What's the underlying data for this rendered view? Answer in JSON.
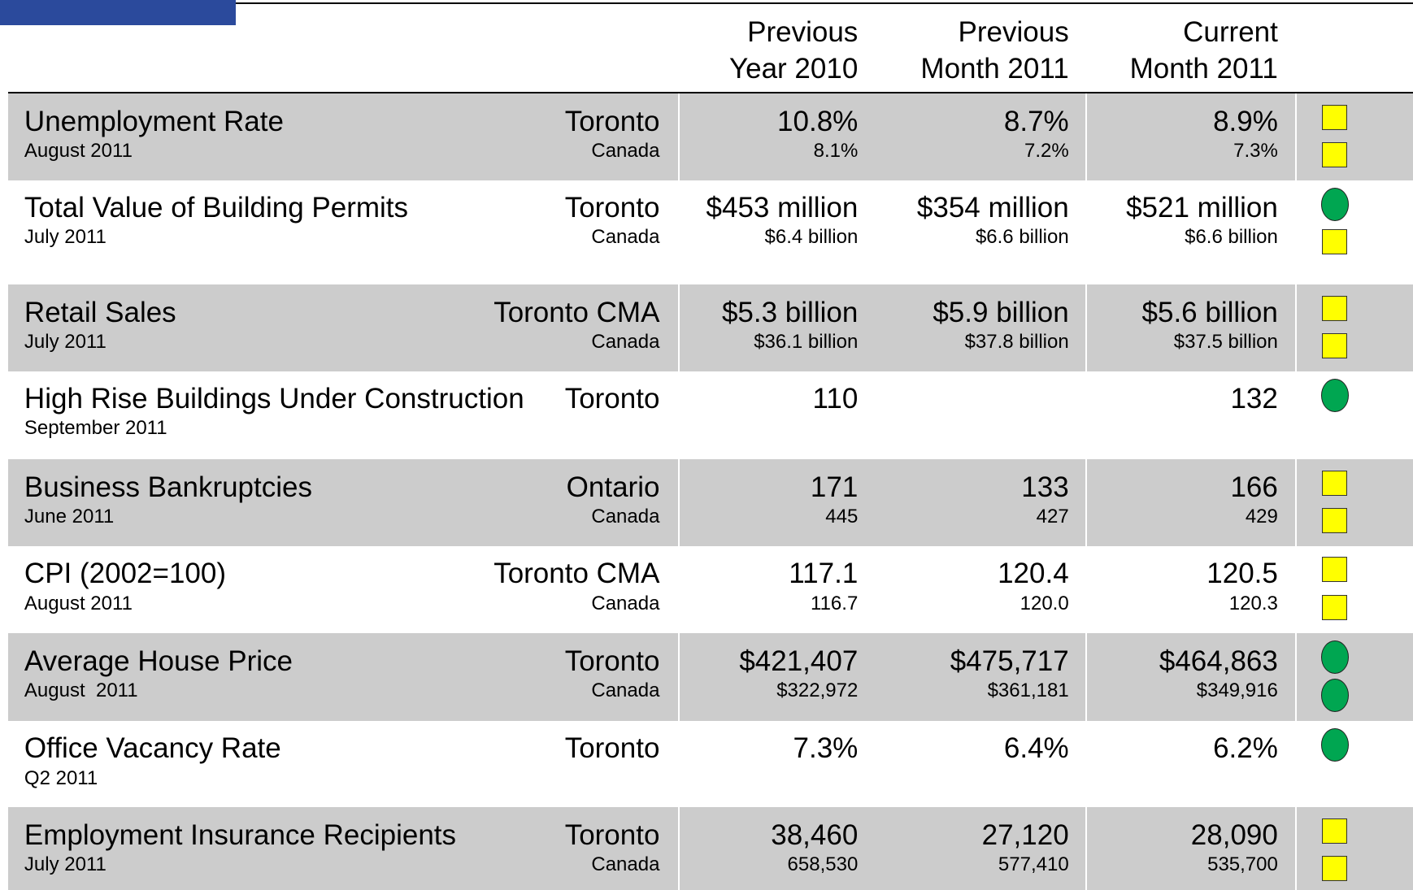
{
  "header": {
    "columns": [
      [
        "Previous",
        "Year 2010"
      ],
      [
        "Previous",
        "Month 2011"
      ],
      [
        "Current",
        "Month 2011"
      ]
    ]
  },
  "rows": [
    {
      "indicator": "Unemployment Rate",
      "period": "August 2011",
      "regions": [
        "Toronto",
        "Canada"
      ],
      "values": [
        [
          "10.8%",
          "8.1%"
        ],
        [
          "8.7%",
          "7.2%"
        ],
        [
          "8.9%",
          "7.3%"
        ]
      ]
    },
    {
      "indicator": "Total Value of Building Permits",
      "period": "July 2011",
      "regions": [
        "Toronto",
        "Canada"
      ],
      "values": [
        [
          "$453 million",
          "$6.4 billion"
        ],
        [
          "$354 million",
          "$6.6 billion"
        ],
        [
          "$521 million",
          "$6.6 billion"
        ]
      ]
    },
    {
      "indicator": "Retail Sales",
      "period": "July 2011",
      "regions": [
        "Toronto CMA",
        "Canada"
      ],
      "values": [
        [
          "$5.3 billion",
          "$36.1 billion"
        ],
        [
          "$5.9 billion",
          "$37.8 billion"
        ],
        [
          "$5.6 billion",
          "$37.5 billion"
        ]
      ]
    },
    {
      "indicator": "High Rise Buildings Under Construction",
      "period": "September 2011",
      "regions": [
        "Toronto"
      ],
      "values": [
        [
          "110"
        ],
        [],
        [
          "132"
        ]
      ]
    },
    {
      "indicator": "Business Bankruptcies",
      "period": "June 2011",
      "regions": [
        "Ontario",
        "Canada"
      ],
      "values": [
        [
          "171",
          "445"
        ],
        [
          "133",
          "427"
        ],
        [
          "166",
          "429"
        ]
      ]
    },
    {
      "indicator": "CPI (2002=100)",
      "period": "August 2011",
      "regions": [
        "Toronto CMA",
        "Canada"
      ],
      "values": [
        [
          "117.1",
          "116.7"
        ],
        [
          "120.4",
          "120.0"
        ],
        [
          "120.5",
          "120.3"
        ]
      ]
    },
    {
      "indicator": "Average House Price",
      "period": "August  2011",
      "regions": [
        "Toronto",
        "Canada"
      ],
      "values": [
        [
          "$421,407",
          "$322,972"
        ],
        [
          "$475,717",
          "$361,181"
        ],
        [
          "$464,863",
          "$349,916"
        ]
      ]
    },
    {
      "indicator": "Office Vacancy Rate",
      "period": "Q2 2011",
      "regions": [
        "Toronto"
      ],
      "values": [
        [
          "7.3%"
        ],
        [
          "6.4%"
        ],
        [
          "6.2%"
        ]
      ]
    },
    {
      "indicator": "Employment Insurance Recipients",
      "period": "July 2011",
      "regions": [
        "Toronto",
        "Canada"
      ],
      "values": [
        [
          "38,460",
          "658,530"
        ],
        [
          "27,120",
          "577,410"
        ],
        [
          "28,090",
          "535,700"
        ]
      ]
    }
  ]
}
